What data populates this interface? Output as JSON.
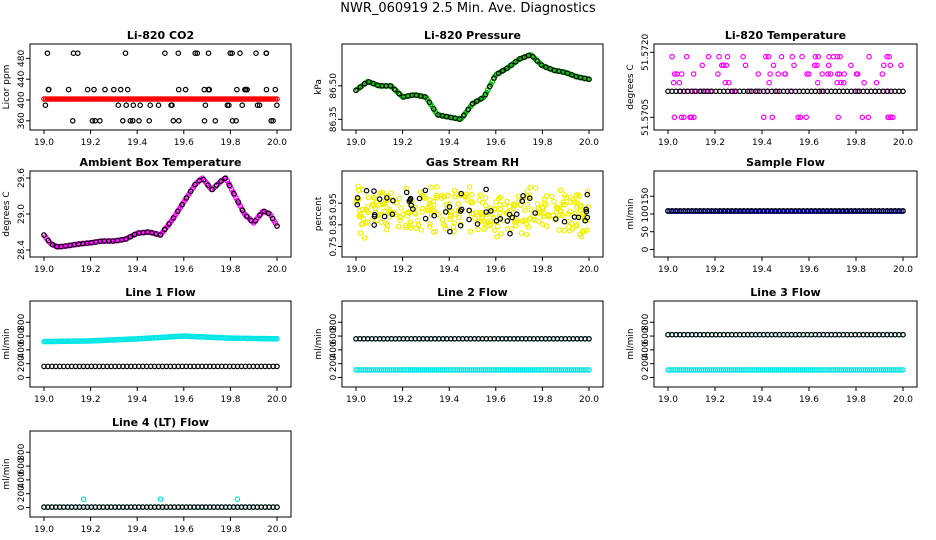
{
  "title": "NWR_060919  2.5 Min. Ave. Diagnostics",
  "chart_data": [
    {
      "type": "scatter",
      "title": "Li-820 CO2",
      "ylabel": "Licor ppm",
      "xlim": [
        19.0,
        20.0
      ],
      "ylim": [
        350,
        500
      ],
      "xticks": [
        "19.0",
        "19.2",
        "19.4",
        "19.6",
        "19.8",
        "20.0"
      ],
      "yticks": [
        360,
        400,
        440,
        480
      ],
      "yticks_rot": true,
      "series": [
        {
          "name": "red",
          "color": "#ff0000",
          "kind": "line",
          "x": [
            19.0,
            20.0
          ],
          "y": [
            402,
            402
          ]
        },
        {
          "name": "black",
          "color": "#000000",
          "kind": "rand",
          "n": 70,
          "levels": [
            360,
            390,
            420,
            490
          ],
          "seed": 1
        }
      ]
    },
    {
      "type": "scatter",
      "title": "Li-820 Pressure",
      "ylabel": "kPa",
      "xlim": [
        19.0,
        20.0
      ],
      "ylim": [
        86.32,
        86.67
      ],
      "xticks": [
        "19.0",
        "19.2",
        "19.4",
        "19.6",
        "19.8",
        "20.0"
      ],
      "yticks": [
        86.35,
        86.5
      ],
      "yticks_fmt": [
        "86.35",
        "86.50"
      ],
      "yticks_rot": true,
      "series": [
        {
          "name": "green",
          "color": "#00bb00",
          "kind": "curve",
          "x": [
            19.0,
            19.05,
            19.1,
            19.15,
            19.2,
            19.25,
            19.3,
            19.35,
            19.4,
            19.45,
            19.5,
            19.55,
            19.6,
            19.65,
            19.7,
            19.75,
            19.8,
            19.85,
            19.9,
            19.95,
            20.0
          ],
          "y": [
            86.48,
            86.52,
            86.5,
            86.5,
            86.45,
            86.46,
            86.45,
            86.37,
            86.36,
            86.35,
            86.42,
            86.45,
            86.55,
            86.58,
            86.62,
            86.64,
            86.59,
            86.57,
            86.56,
            86.54,
            86.53
          ]
        },
        {
          "name": "black",
          "color": "#000000",
          "kind": "curve-sparse",
          "x": [
            19.0,
            19.05,
            19.1,
            19.15,
            19.2,
            19.25,
            19.3,
            19.35,
            19.4,
            19.45,
            19.5,
            19.55,
            19.6,
            19.65,
            19.7,
            19.75,
            19.8,
            19.85,
            19.9,
            19.95,
            20.0
          ],
          "y": [
            86.48,
            86.52,
            86.5,
            86.5,
            86.45,
            86.46,
            86.45,
            86.37,
            86.36,
            86.35,
            86.42,
            86.45,
            86.55,
            86.58,
            86.62,
            86.64,
            86.59,
            86.57,
            86.56,
            86.54,
            86.53
          ]
        }
      ]
    },
    {
      "type": "scatter",
      "title": "Li-820 Temperature",
      "ylabel": "degrees C",
      "xlim": [
        19.0,
        20.0
      ],
      "ylim": [
        51.5703,
        51.5721
      ],
      "xticks": [
        "19.0",
        "19.2",
        "19.4",
        "19.6",
        "19.8",
        "20.0"
      ],
      "yticks": [
        51.5705,
        51.572
      ],
      "yticks_fmt": [
        "51.5705",
        "51.5720"
      ],
      "yticks_rot": true,
      "series": [
        {
          "name": "magenta",
          "color": "#ff00ff",
          "kind": "rand",
          "n": 110,
          "levels": [
            51.5705,
            51.5711,
            51.5713,
            51.5715,
            51.5717,
            51.5719
          ],
          "seed": 3
        },
        {
          "name": "black",
          "color": "#000000",
          "kind": "line-pts",
          "n": 60,
          "y": 51.5711
        }
      ]
    },
    {
      "type": "scatter",
      "title": "Ambient Box Temperature",
      "ylabel": "degrees C",
      "xlim": [
        19.0,
        20.0
      ],
      "ylim": [
        28.35,
        29.65
      ],
      "xticks": [
        "19.0",
        "19.2",
        "19.4",
        "19.6",
        "19.8",
        "20.0"
      ],
      "yticks": [
        28.4,
        29.0,
        29.6
      ],
      "yticks_fmt": [
        "28.4",
        "29.0",
        "29.6"
      ],
      "yticks_rot": true,
      "series": [
        {
          "name": "magenta",
          "color": "#ff00ff",
          "kind": "curve",
          "x": [
            19.0,
            19.03,
            19.06,
            19.1,
            19.15,
            19.2,
            19.25,
            19.3,
            19.35,
            19.4,
            19.45,
            19.5,
            19.55,
            19.6,
            19.65,
            19.68,
            19.72,
            19.76,
            19.78,
            19.82,
            19.86,
            19.9,
            19.94,
            19.97,
            20.0
          ],
          "y": [
            28.65,
            28.5,
            28.45,
            28.47,
            28.5,
            28.52,
            28.55,
            28.55,
            28.58,
            28.68,
            28.7,
            28.65,
            28.9,
            29.2,
            29.5,
            29.6,
            29.4,
            29.55,
            29.6,
            29.3,
            29.0,
            28.85,
            29.05,
            29.0,
            28.8
          ]
        },
        {
          "name": "black",
          "color": "#000000",
          "kind": "curve-sparse",
          "x": [
            19.0,
            19.03,
            19.06,
            19.1,
            19.15,
            19.2,
            19.25,
            19.3,
            19.35,
            19.4,
            19.45,
            19.5,
            19.55,
            19.6,
            19.65,
            19.68,
            19.72,
            19.76,
            19.78,
            19.82,
            19.86,
            19.9,
            19.94,
            19.97,
            20.0
          ],
          "y": [
            28.65,
            28.5,
            28.45,
            28.47,
            28.5,
            28.52,
            28.55,
            28.55,
            28.58,
            28.68,
            28.7,
            28.65,
            28.9,
            29.2,
            29.5,
            29.6,
            29.4,
            29.55,
            29.6,
            29.3,
            29.0,
            28.85,
            29.05,
            29.0,
            28.8
          ]
        }
      ]
    },
    {
      "type": "scatter",
      "title": "Gas Stream RH",
      "ylabel": "percent",
      "xlim": [
        19.0,
        20.0
      ],
      "ylim": [
        0.72,
        1.08
      ],
      "xticks": [
        "19.0",
        "19.2",
        "19.4",
        "19.6",
        "19.8",
        "20.0"
      ],
      "yticks": [
        0.75,
        0.85,
        0.95
      ],
      "yticks_fmt": [
        "0.75",
        "0.85",
        "0.95"
      ],
      "yticks_rot": true,
      "series": [
        {
          "name": "yellow",
          "color": "#f0f000",
          "kind": "noise",
          "n": 320,
          "mean": 0.91,
          "spread": 0.13,
          "seed": 5
        },
        {
          "name": "black",
          "color": "#000000",
          "kind": "noise",
          "n": 55,
          "mean": 0.92,
          "spread": 0.12,
          "seed": 9
        }
      ]
    },
    {
      "type": "scatter",
      "title": "Sample Flow",
      "ylabel": "ml/min",
      "xlim": [
        19.0,
        20.0
      ],
      "ylim": [
        -10,
        210
      ],
      "xticks": [
        "19.0",
        "19.2",
        "19.4",
        "19.6",
        "19.8",
        "20.0"
      ],
      "yticks": [
        0,
        50,
        100,
        150
      ],
      "yticks_rot": true,
      "series": [
        {
          "name": "blue",
          "color": "#0000cc",
          "kind": "line-pts",
          "n": 120,
          "y": 108
        },
        {
          "name": "black",
          "color": "#000000",
          "kind": "line-pts",
          "n": 60,
          "y": 109
        }
      ]
    },
    {
      "type": "scatter",
      "title": "Line 1 Flow",
      "ylabel": "ml/min",
      "xlim": [
        19.0,
        20.0
      ],
      "ylim": [
        -80,
        1050
      ],
      "xticks": [
        "19.0",
        "19.2",
        "19.4",
        "19.6",
        "19.8",
        "20.0"
      ],
      "yticks": [
        0,
        200,
        400,
        600,
        800
      ],
      "yticks_rot": true,
      "series": [
        {
          "name": "cyan",
          "color": "#00e5e5",
          "kind": "curve",
          "x": [
            19.0,
            19.2,
            19.4,
            19.5,
            19.6,
            19.8,
            20.0
          ],
          "y": [
            520,
            530,
            560,
            580,
            600,
            570,
            560
          ]
        },
        {
          "name": "black",
          "color": "#000000",
          "kind": "line-pts",
          "n": 60,
          "y": 160
        }
      ]
    },
    {
      "type": "scatter",
      "title": "Line 2 Flow",
      "ylabel": "ml/min",
      "xlim": [
        19.0,
        20.0
      ],
      "ylim": [
        -80,
        1050
      ],
      "xticks": [
        "19.0",
        "19.2",
        "19.4",
        "19.6",
        "19.8",
        "20.0"
      ],
      "yticks": [
        0,
        200,
        400,
        600,
        800
      ],
      "yticks_rot": true,
      "series": [
        {
          "name": "cyan",
          "color": "#00e5e5",
          "kind": "line-pts",
          "n": 120,
          "y": 110
        },
        {
          "name": "cyan2",
          "color": "#00e5e5",
          "kind": "line-pts",
          "n": 60,
          "y": 560
        },
        {
          "name": "black",
          "color": "#000000",
          "kind": "line-pts",
          "n": 60,
          "y": 560
        }
      ]
    },
    {
      "type": "scatter",
      "title": "Line 3 Flow",
      "ylabel": "ml/min",
      "xlim": [
        19.0,
        20.0
      ],
      "ylim": [
        -80,
        1050
      ],
      "xticks": [
        "19.0",
        "19.2",
        "19.4",
        "19.6",
        "19.8",
        "20.0"
      ],
      "yticks": [
        0,
        200,
        400,
        600,
        800
      ],
      "yticks_rot": true,
      "series": [
        {
          "name": "cyan",
          "color": "#00e5e5",
          "kind": "line-pts",
          "n": 120,
          "y": 110
        },
        {
          "name": "cyan2",
          "color": "#00e5e5",
          "kind": "line-pts",
          "n": 60,
          "y": 620
        },
        {
          "name": "black",
          "color": "#000000",
          "kind": "line-pts",
          "n": 60,
          "y": 620
        }
      ]
    },
    {
      "type": "scatter",
      "title": "Line 4 (LT) Flow",
      "ylabel": "ml/min",
      "xlim": [
        19.0,
        20.0
      ],
      "ylim": [
        -80,
        1050
      ],
      "xticks": [
        "19.0",
        "19.2",
        "19.4",
        "19.6",
        "19.8",
        "20.0"
      ],
      "yticks": [
        0,
        200,
        400,
        600,
        800
      ],
      "yticks_rot": true,
      "series": [
        {
          "name": "cyan",
          "color": "#00e5e5",
          "kind": "line-pts",
          "n": 60,
          "y": 5
        },
        {
          "name": "cyan-spikes",
          "color": "#00e5e5",
          "kind": "pts",
          "x": [
            19.17,
            19.5,
            19.83
          ],
          "y": [
            120,
            120,
            120
          ]
        },
        {
          "name": "black",
          "color": "#000000",
          "kind": "line-pts",
          "n": 60,
          "y": 5
        }
      ]
    }
  ]
}
